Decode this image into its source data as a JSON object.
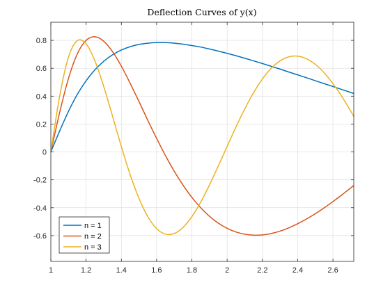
{
  "chart_data": {
    "type": "line",
    "title": "Deflection Curves of y(x)",
    "xlabel": "",
    "ylabel": "",
    "xlim": [
      1,
      2.71828
    ],
    "ylim": [
      -0.785,
      0.93
    ],
    "xticks": [
      1,
      1.2,
      1.4,
      1.6,
      1.8,
      2,
      2.2,
      2.4,
      2.6
    ],
    "xtick_labels": [
      "1",
      "1.2",
      "1.4",
      "1.6",
      "1.8",
      "2",
      "2.2",
      "2.4",
      "2.6"
    ],
    "yticks": [
      -0.6,
      -0.4,
      -0.2,
      0,
      0.2,
      0.4,
      0.6,
      0.8
    ],
    "ytick_labels": [
      "-0.6",
      "-0.4",
      "-0.2",
      "0",
      "0.2",
      "0.4",
      "0.6",
      "0.8"
    ],
    "grid": true,
    "legend_position": "bottom-left",
    "series": [
      {
        "name": "n = 1",
        "color": "#0072BD",
        "x": [
          1.0,
          1.05,
          1.1,
          1.15,
          1.2,
          1.25,
          1.3,
          1.35,
          1.4,
          1.45,
          1.5,
          1.55,
          1.6,
          1.65,
          1.7,
          1.75,
          1.8,
          1.85,
          1.9,
          1.95,
          2.0,
          2.05,
          2.1,
          2.15,
          2.2,
          2.25,
          2.3,
          2.35,
          2.4,
          2.45,
          2.5,
          2.55,
          2.6,
          2.65,
          2.7,
          2.718
        ],
        "y": [
          0.0,
          0.15,
          0.291,
          0.412,
          0.51,
          0.589,
          0.65,
          0.697,
          0.731,
          0.755,
          0.771,
          0.78,
          0.784,
          0.784,
          0.78,
          0.773,
          0.763,
          0.752,
          0.738,
          0.723,
          0.707,
          0.69,
          0.672,
          0.653,
          0.634,
          0.614,
          0.594,
          0.573,
          0.553,
          0.532,
          0.511,
          0.49,
          0.469,
          0.448,
          0.427,
          0.419
        ]
      },
      {
        "name": "n = 2",
        "color": "#D95319",
        "x": [
          1.0,
          1.05,
          1.1,
          1.15,
          1.2,
          1.25,
          1.3,
          1.35,
          1.4,
          1.45,
          1.5,
          1.55,
          1.6,
          1.65,
          1.7,
          1.75,
          1.8,
          1.85,
          1.9,
          1.95,
          2.0,
          2.05,
          2.1,
          2.15,
          2.2,
          2.25,
          2.3,
          2.35,
          2.4,
          2.45,
          2.5,
          2.55,
          2.6,
          2.65,
          2.7,
          2.718
        ],
        "y": [
          0.0,
          0.283,
          0.527,
          0.703,
          0.8,
          0.826,
          0.794,
          0.719,
          0.615,
          0.492,
          0.361,
          0.227,
          0.097,
          -0.026,
          -0.138,
          -0.238,
          -0.326,
          -0.4,
          -0.462,
          -0.511,
          -0.548,
          -0.574,
          -0.59,
          -0.597,
          -0.595,
          -0.585,
          -0.568,
          -0.544,
          -0.515,
          -0.481,
          -0.443,
          -0.401,
          -0.356,
          -0.309,
          -0.259,
          -0.241
        ]
      },
      {
        "name": "n = 3",
        "color": "#EDB120",
        "x": [
          1.0,
          1.05,
          1.1,
          1.15,
          1.2,
          1.25,
          1.3,
          1.35,
          1.4,
          1.45,
          1.5,
          1.55,
          1.6,
          1.65,
          1.7,
          1.75,
          1.8,
          1.85,
          1.9,
          1.95,
          2.0,
          2.05,
          2.1,
          2.15,
          2.2,
          2.25,
          2.3,
          2.35,
          2.4,
          2.45,
          2.5,
          2.55,
          2.6,
          2.65,
          2.7,
          2.718
        ],
        "y": [
          0.0,
          0.4,
          0.68,
          0.798,
          0.776,
          0.653,
          0.469,
          0.256,
          0.038,
          -0.163,
          -0.333,
          -0.464,
          -0.55,
          -0.589,
          -0.585,
          -0.541,
          -0.464,
          -0.36,
          -0.236,
          -0.1,
          0.04,
          0.179,
          0.309,
          0.425,
          0.523,
          0.6,
          0.653,
          0.682,
          0.687,
          0.668,
          0.628,
          0.568,
          0.49,
          0.398,
          0.295,
          0.254
        ]
      }
    ]
  }
}
